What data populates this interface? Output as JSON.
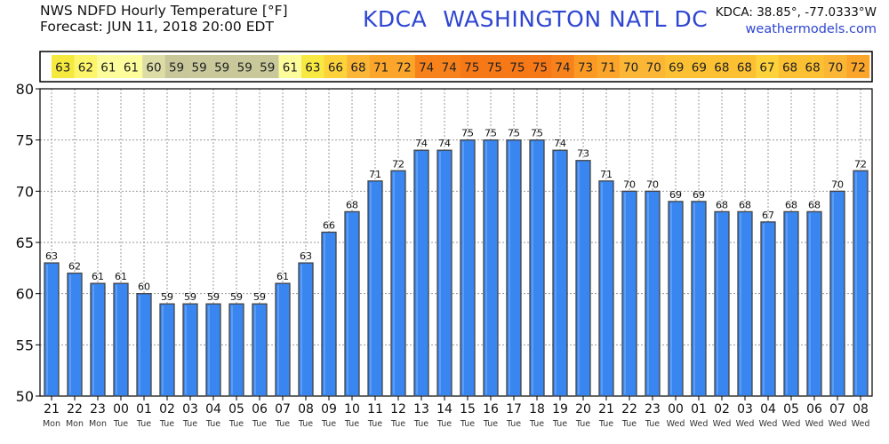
{
  "header": {
    "title_line1": "NWS NDFD Hourly Temperature [°F]",
    "title_line2": "Forecast: JUN 11, 2018 20:00 EDT",
    "station_code": "KDCA",
    "station_name": "WASHINGTON NATL DC",
    "coords": "KDCA: 38.85°, -77.0333°W",
    "site": "weathermodels.com"
  },
  "chart_data": {
    "type": "bar",
    "ylim": [
      50,
      80
    ],
    "yticks": [
      50,
      55,
      60,
      65,
      70,
      75,
      80
    ],
    "grid": true,
    "hours": [
      "21",
      "22",
      "23",
      "00",
      "01",
      "02",
      "03",
      "04",
      "05",
      "06",
      "07",
      "08",
      "09",
      "10",
      "11",
      "12",
      "13",
      "14",
      "15",
      "16",
      "17",
      "18",
      "19",
      "20",
      "21",
      "22",
      "23",
      "00",
      "01",
      "02",
      "03",
      "04",
      "05",
      "06",
      "07",
      "08"
    ],
    "days": [
      "Mon",
      "Mon",
      "Mon",
      "Tue",
      "Tue",
      "Tue",
      "Tue",
      "Tue",
      "Tue",
      "Tue",
      "Tue",
      "Tue",
      "Tue",
      "Tue",
      "Tue",
      "Tue",
      "Tue",
      "Tue",
      "Tue",
      "Tue",
      "Tue",
      "Tue",
      "Tue",
      "Tue",
      "Tue",
      "Tue",
      "Tue",
      "Wed",
      "Wed",
      "Wed",
      "Wed",
      "Wed",
      "Wed",
      "Wed",
      "Wed",
      "Wed"
    ],
    "values": [
      63,
      62,
      61,
      61,
      60,
      59,
      59,
      59,
      59,
      59,
      61,
      63,
      66,
      68,
      71,
      72,
      74,
      74,
      75,
      75,
      75,
      75,
      74,
      73,
      71,
      70,
      70,
      69,
      69,
      68,
      68,
      67,
      68,
      68,
      70,
      72
    ],
    "strip_colors": [
      "#f5e93e",
      "#fdf56b",
      "#fcfc9a",
      "#fdfd9b",
      "#dcdca7",
      "#c7c79a",
      "#c8c89b",
      "#c8c89b",
      "#c8c89b",
      "#c8c89b",
      "#fcfc9a",
      "#f7e842",
      "#fdd23a",
      "#fcb636",
      "#fba52a",
      "#fba52a",
      "#f7821b",
      "#f7821b",
      "#f77816",
      "#f77816",
      "#f77816",
      "#f77816",
      "#f7821b",
      "#fb9a22",
      "#fba52a",
      "#fcb636",
      "#fcb636",
      "#fcc033",
      "#fcc033",
      "#fcc033",
      "#fcc033",
      "#fdd23a",
      "#fcc033",
      "#fcc033",
      "#fcb636",
      "#fba52a"
    ],
    "bar_color": "#3a86f0",
    "bar_edge_color": "#444444"
  }
}
